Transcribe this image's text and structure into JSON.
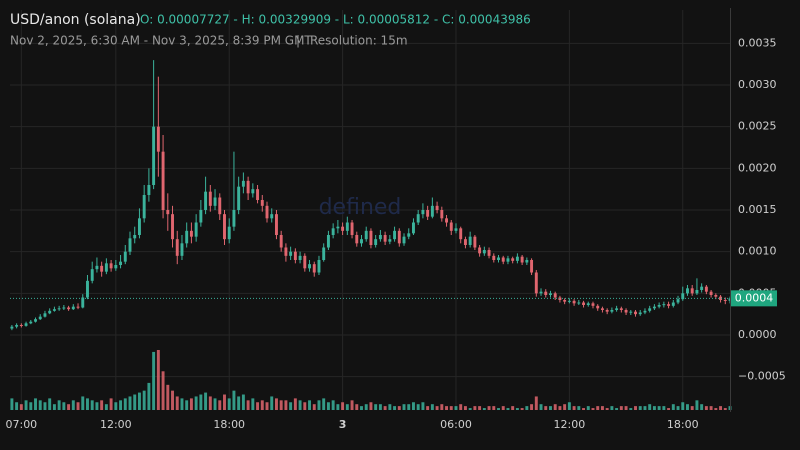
{
  "chart_data": {
    "type": "candlestick",
    "title": "USD/anon (solana)",
    "ohlc_text": "O: 0.00007727 - H: 0.00329909 - L: 0.00005812 - C: 0.00043986",
    "subtitle": "Nov 2, 2025, 6:30 AM - Nov 3, 2025, 8:39 PM GMT",
    "resolution": "Resolution: 15m",
    "watermark": "defined",
    "up_color": "#3bb39c",
    "down_color": "#e0666f",
    "grid": true,
    "xlim": [
      6.4,
      44.5
    ],
    "xticks": [
      {
        "value": 7,
        "label": "07:00"
      },
      {
        "value": 12,
        "label": "12:00"
      },
      {
        "value": 18,
        "label": "18:00"
      },
      {
        "value": 24,
        "label": "3"
      },
      {
        "value": 30,
        "label": "06:00"
      },
      {
        "value": 36,
        "label": "12:00"
      },
      {
        "value": 42,
        "label": "18:00"
      }
    ],
    "ylim": [
      -0.0009,
      0.0039
    ],
    "yticks": [
      {
        "value": -0.0005,
        "label": "−0.0005"
      },
      {
        "value": 0,
        "label": "0.0000"
      },
      0.0005,
      {
        "value": 0.001,
        "label": "0.0010"
      },
      0.0015,
      {
        "value": 0.002,
        "label": "0.0020"
      },
      0.0025,
      {
        "value": 0.003,
        "label": "0.0030"
      },
      0.0035
    ],
    "last_price": {
      "value": 0.00043986,
      "label": "0.0004"
    },
    "x": [
      6.5,
      6.75,
      7,
      7.25,
      7.5,
      7.75,
      8,
      8.25,
      8.5,
      8.75,
      9,
      9.25,
      9.5,
      9.75,
      10,
      10.25,
      10.5,
      10.75,
      11,
      11.25,
      11.5,
      11.75,
      12,
      12.25,
      12.5,
      12.75,
      13,
      13.25,
      13.5,
      13.75,
      14,
      14.25,
      14.5,
      14.75,
      15,
      15.25,
      15.5,
      15.75,
      16,
      16.25,
      16.5,
      16.75,
      17,
      17.25,
      17.5,
      17.75,
      18,
      18.25,
      18.5,
      18.75,
      19,
      19.25,
      19.5,
      19.75,
      20,
      20.25,
      20.5,
      20.75,
      21,
      21.25,
      21.5,
      21.75,
      22,
      22.25,
      22.5,
      22.75,
      23,
      23.25,
      23.5,
      23.75,
      24,
      24.25,
      24.5,
      24.75,
      25,
      25.25,
      25.5,
      25.75,
      26,
      26.25,
      26.5,
      26.75,
      27,
      27.25,
      27.5,
      27.75,
      28,
      28.25,
      28.5,
      28.75,
      29,
      29.25,
      29.5,
      29.75,
      30,
      30.25,
      30.5,
      30.75,
      31,
      31.25,
      31.5,
      31.75,
      32,
      32.25,
      32.5,
      32.75,
      33,
      33.25,
      33.5,
      33.75,
      34,
      34.25,
      34.5,
      34.75,
      35,
      35.25,
      35.5,
      35.75,
      36,
      36.25,
      36.5,
      36.75,
      37,
      37.25,
      37.5,
      37.75,
      38,
      38.25,
      38.5,
      38.75,
      39,
      39.25,
      39.5,
      39.75,
      40,
      40.25,
      40.5,
      40.75,
      41,
      41.25,
      41.5,
      41.75,
      42,
      42.25,
      42.5,
      42.75,
      43,
      43.25,
      43.5,
      43.75,
      44,
      44.25,
      44.5
    ],
    "open": [
      7.727e-05,
      0.0001,
      0.00012,
      0.00011,
      0.00014,
      0.00016,
      0.00019,
      0.00022,
      0.00026,
      0.00029,
      0.00031,
      0.00032,
      0.00033,
      0.00031,
      0.00034,
      0.00033,
      0.00045,
      0.00065,
      0.00079,
      0.00083,
      0.00076,
      0.00086,
      0.0008,
      0.00084,
      0.00088,
      0.001,
      0.00116,
      0.0012,
      0.0014,
      0.00168,
      0.0018,
      0.0025,
      0.0022,
      0.0015,
      0.00145,
      0.00115,
      0.00095,
      0.0011,
      0.00125,
      0.00118,
      0.00135,
      0.0015,
      0.00172,
      0.00155,
      0.00165,
      0.00145,
      0.00115,
      0.0013,
      0.0015,
      0.00178,
      0.00185,
      0.0017,
      0.00175,
      0.00162,
      0.00155,
      0.0014,
      0.00145,
      0.0012,
      0.00105,
      0.00095,
      0.001,
      0.0009,
      0.00095,
      0.0008,
      0.00085,
      0.00075,
      0.0009,
      0.00105,
      0.0012,
      0.00128,
      0.0013,
      0.00125,
      0.00135,
      0.0012,
      0.0011,
      0.00115,
      0.00125,
      0.00108,
      0.00115,
      0.0012,
      0.00112,
      0.00115,
      0.00125,
      0.0011,
      0.00118,
      0.00122,
      0.00135,
      0.00145,
      0.0015,
      0.00142,
      0.00155,
      0.0015,
      0.0014,
      0.00135,
      0.00125,
      0.00128,
      0.00115,
      0.00108,
      0.00118,
      0.00105,
      0.00098,
      0.00102,
      0.00095,
      0.0009,
      0.00093,
      0.00088,
      0.00092,
      0.00089,
      0.00094,
      0.00087,
      0.0009,
      0.00075,
      0.0005,
      0.00052,
      0.00048,
      0.0005,
      0.00045,
      0.00042,
      0.0004,
      0.00041,
      0.00038,
      0.00039,
      0.00036,
      0.00038,
      0.00035,
      0.00032,
      0.0003,
      0.00028,
      0.0003,
      0.00032,
      0.0003,
      0.00027,
      0.00028,
      0.00025,
      0.00027,
      0.00029,
      0.00032,
      0.00034,
      0.00036,
      0.00037,
      0.00035,
      0.00039,
      0.00043,
      0.0005,
      0.00056,
      0.0005,
      0.00054,
      0.00058,
      0.00052,
      0.00048,
      0.00046,
      0.00042,
      0.00041
    ],
    "high": [
      0.00012,
      0.00014,
      0.00014,
      0.00016,
      0.00018,
      0.00021,
      0.00025,
      0.00029,
      0.00032,
      0.00034,
      0.00035,
      0.00036,
      0.00035,
      0.00037,
      0.00038,
      0.00049,
      0.00072,
      0.00088,
      0.00093,
      0.00088,
      0.00092,
      0.0009,
      0.0009,
      0.00096,
      0.00108,
      0.00124,
      0.0013,
      0.00152,
      0.0018,
      0.002,
      0.00329909,
      0.0031,
      0.0024,
      0.0017,
      0.00155,
      0.00125,
      0.0012,
      0.00135,
      0.00135,
      0.00145,
      0.00162,
      0.0019,
      0.0018,
      0.00175,
      0.0017,
      0.0015,
      0.0014,
      0.0022,
      0.0019,
      0.00195,
      0.0019,
      0.00182,
      0.0018,
      0.00168,
      0.0016,
      0.00152,
      0.0015,
      0.00125,
      0.0011,
      0.00106,
      0.00104,
      0.001,
      0.00098,
      0.0009,
      0.00088,
      0.00095,
      0.0011,
      0.00125,
      0.00134,
      0.00138,
      0.00135,
      0.00142,
      0.00138,
      0.00124,
      0.0012,
      0.0013,
      0.00128,
      0.0012,
      0.00126,
      0.00124,
      0.0012,
      0.0013,
      0.00128,
      0.00122,
      0.00128,
      0.0014,
      0.0015,
      0.00158,
      0.00155,
      0.00165,
      0.0016,
      0.00154,
      0.00144,
      0.00138,
      0.00134,
      0.0013,
      0.00118,
      0.00124,
      0.0012,
      0.00108,
      0.00106,
      0.00105,
      0.00098,
      0.00096,
      0.00095,
      0.00095,
      0.00094,
      0.00098,
      0.00096,
      0.00093,
      0.00092,
      0.00078,
      0.00056,
      0.00055,
      0.00053,
      0.00052,
      0.00047,
      0.00044,
      0.00044,
      0.00043,
      0.00042,
      0.00041,
      0.0004,
      0.0004,
      0.00037,
      0.00034,
      0.00032,
      0.00033,
      0.00035,
      0.00034,
      0.00032,
      0.0003,
      0.0003,
      0.0003,
      0.00032,
      0.00035,
      0.00037,
      0.00039,
      0.0004,
      0.0004,
      0.00042,
      0.00047,
      0.00058,
      0.0006,
      0.0006,
      0.00068,
      0.00062,
      0.0006,
      0.00054,
      0.0005,
      0.00048,
      0.00045,
      0.00046
    ],
    "low": [
      5.812e-05,
      8e-05,
      9e-05,
      0.0001,
      0.00013,
      0.00015,
      0.00018,
      0.00021,
      0.00025,
      0.00028,
      0.00029,
      0.0003,
      0.00029,
      0.0003,
      0.00031,
      0.00032,
      0.00043,
      0.00062,
      0.00075,
      0.0007,
      0.00073,
      0.00076,
      0.00077,
      0.0008,
      0.00085,
      0.00096,
      0.0011,
      0.00116,
      0.00135,
      0.0016,
      0.00175,
      0.0019,
      0.0014,
      0.00125,
      0.00105,
      0.00085,
      0.0009,
      0.00105,
      0.0011,
      0.00112,
      0.0013,
      0.00145,
      0.00148,
      0.0015,
      0.00138,
      0.00108,
      0.0011,
      0.00125,
      0.00145,
      0.0017,
      0.00162,
      0.00165,
      0.00158,
      0.00148,
      0.00135,
      0.00135,
      0.00115,
      0.001,
      0.00088,
      0.0009,
      0.00086,
      0.00086,
      0.00076,
      0.00076,
      0.0007,
      0.00072,
      0.00088,
      0.00102,
      0.00116,
      0.00122,
      0.0012,
      0.0012,
      0.00116,
      0.00106,
      0.00106,
      0.00112,
      0.00104,
      0.00105,
      0.00112,
      0.00108,
      0.00109,
      0.00112,
      0.00106,
      0.00107,
      0.00115,
      0.0012,
      0.00132,
      0.0014,
      0.00138,
      0.0014,
      0.00146,
      0.00136,
      0.0013,
      0.0012,
      0.00122,
      0.0011,
      0.00104,
      0.00105,
      0.00102,
      0.00094,
      0.00095,
      0.00092,
      0.00087,
      0.00087,
      0.00085,
      0.00085,
      0.00086,
      0.00086,
      0.00084,
      0.00084,
      0.00072,
      0.00046,
      0.00047,
      0.00045,
      0.00045,
      0.00042,
      0.00039,
      0.00037,
      0.00038,
      0.00035,
      0.00036,
      0.00033,
      0.00034,
      0.00032,
      0.00029,
      0.00027,
      0.00025,
      0.00026,
      0.00028,
      0.00027,
      0.00024,
      0.00024,
      0.00022,
      0.00023,
      0.00025,
      0.00027,
      0.0003,
      0.00032,
      0.00033,
      0.00032,
      0.00033,
      0.00037,
      0.00041,
      0.00047,
      0.00047,
      0.00048,
      0.00051,
      0.00049,
      0.00045,
      0.00043,
      0.00039,
      0.00037,
      0.00038
    ],
    "close": [
      0.0001,
      0.00012,
      0.00011,
      0.00014,
      0.00016,
      0.00019,
      0.00022,
      0.00026,
      0.00029,
      0.00031,
      0.00032,
      0.00033,
      0.00031,
      0.00034,
      0.00033,
      0.00045,
      0.00065,
      0.00079,
      0.00083,
      0.00076,
      0.00086,
      0.0008,
      0.00084,
      0.00088,
      0.001,
      0.00116,
      0.0012,
      0.0014,
      0.00168,
      0.0018,
      0.0025,
      0.0022,
      0.0015,
      0.00145,
      0.00115,
      0.00095,
      0.0011,
      0.00125,
      0.00118,
      0.00135,
      0.0015,
      0.00172,
      0.00155,
      0.00165,
      0.00145,
      0.00115,
      0.0013,
      0.0015,
      0.00178,
      0.00185,
      0.0017,
      0.00175,
      0.00162,
      0.00155,
      0.0014,
      0.00145,
      0.0012,
      0.00105,
      0.00095,
      0.001,
      0.0009,
      0.00095,
      0.0008,
      0.00085,
      0.00075,
      0.0009,
      0.00105,
      0.0012,
      0.00128,
      0.0013,
      0.00125,
      0.00135,
      0.0012,
      0.0011,
      0.00115,
      0.00125,
      0.00108,
      0.00115,
      0.0012,
      0.00112,
      0.00115,
      0.00125,
      0.0011,
      0.00118,
      0.00122,
      0.00135,
      0.00145,
      0.0015,
      0.00142,
      0.00155,
      0.0015,
      0.0014,
      0.00135,
      0.00125,
      0.00128,
      0.00115,
      0.00108,
      0.00118,
      0.00105,
      0.00098,
      0.00102,
      0.00095,
      0.0009,
      0.00093,
      0.00088,
      0.00092,
      0.00089,
      0.00094,
      0.00087,
      0.0009,
      0.00075,
      0.0005,
      0.00052,
      0.00048,
      0.0005,
      0.00045,
      0.00042,
      0.0004,
      0.00041,
      0.00038,
      0.00039,
      0.00036,
      0.00038,
      0.00035,
      0.00032,
      0.0003,
      0.00028,
      0.0003,
      0.00032,
      0.0003,
      0.00027,
      0.00028,
      0.00025,
      0.00027,
      0.00029,
      0.00032,
      0.00034,
      0.00036,
      0.00037,
      0.00035,
      0.00039,
      0.00043,
      0.0005,
      0.00056,
      0.0005,
      0.00054,
      0.00058,
      0.00052,
      0.00048,
      0.00046,
      0.00042,
      0.00041,
      0.00043986
    ],
    "volume": [
      12,
      8,
      6,
      10,
      8,
      12,
      10,
      8,
      12,
      6,
      10,
      8,
      6,
      10,
      8,
      14,
      12,
      10,
      8,
      10,
      6,
      12,
      8,
      10,
      12,
      14,
      16,
      18,
      20,
      28,
      60,
      62,
      40,
      26,
      20,
      14,
      12,
      10,
      12,
      14,
      16,
      18,
      14,
      12,
      10,
      16,
      12,
      20,
      14,
      16,
      10,
      12,
      8,
      10,
      8,
      14,
      12,
      10,
      10,
      8,
      12,
      10,
      8,
      10,
      6,
      10,
      12,
      8,
      10,
      6,
      8,
      6,
      10,
      6,
      4,
      6,
      8,
      6,
      6,
      4,
      6,
      4,
      4,
      6,
      6,
      8,
      6,
      8,
      4,
      6,
      4,
      6,
      4,
      4,
      4,
      6,
      4,
      2,
      4,
      4,
      2,
      4,
      4,
      2,
      4,
      2,
      4,
      2,
      2,
      4,
      6,
      14,
      6,
      4,
      4,
      6,
      4,
      6,
      8,
      4,
      4,
      2,
      4,
      2,
      4,
      4,
      2,
      4,
      2,
      4,
      4,
      2,
      4,
      4,
      4,
      6,
      4,
      4,
      4,
      2,
      6,
      4,
      8,
      6,
      4,
      10,
      6,
      4,
      4,
      2,
      4,
      2,
      4
    ]
  }
}
